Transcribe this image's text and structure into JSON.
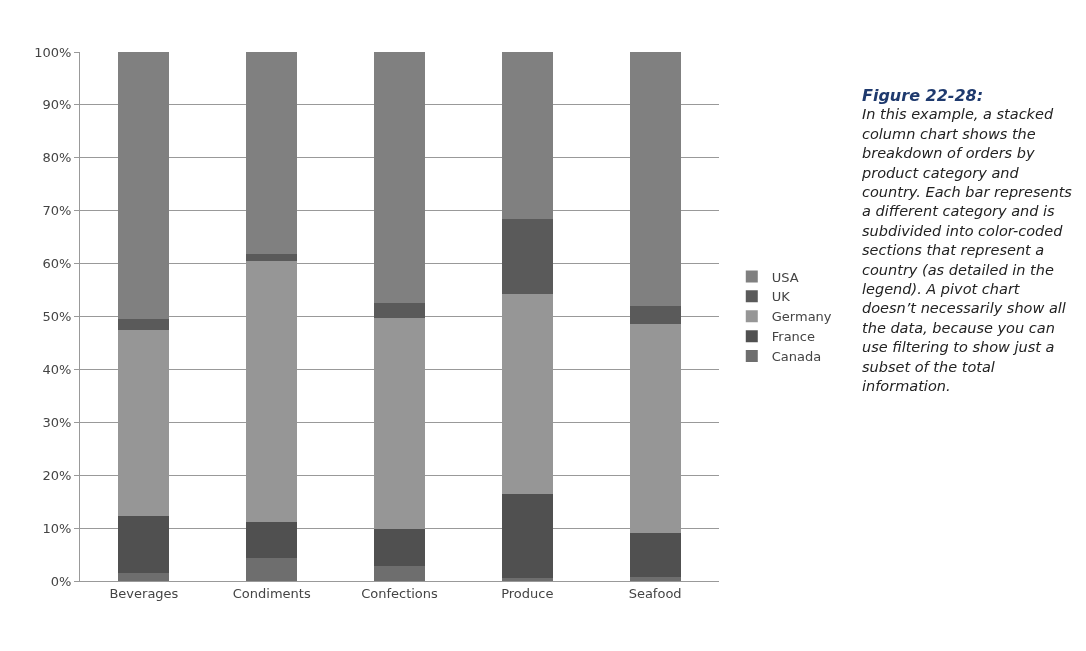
{
  "chart_data": {
    "type": "bar",
    "stacked": true,
    "title": "Figure 22-28:",
    "annotations": [
      "In this example, a stacked column chart shows the breakdown of orders by product category and country. Each bar represents a different category and is subdivided into color-coded sections that represent a country (as detailed in the legend). A pivot chart doesn’t necessarily show all the data, because you can use filtering to show just a subset of the total information."
    ],
    "categories": [
      "Beverages",
      "Condiments",
      "Confections",
      "Produce",
      "Seafood"
    ],
    "series": [
      {
        "name": "Canada",
        "color": "#6e6e6e",
        "values": [
          1.5,
          4.4,
          2.8,
          0.5,
          0.8
        ]
      },
      {
        "name": "France",
        "color": "#505050",
        "values": [
          10.8,
          6.8,
          7.0,
          15.9,
          8.2
        ]
      },
      {
        "name": "Germany",
        "color": "#969696",
        "values": [
          35.2,
          49.3,
          39.9,
          37.9,
          39.5
        ]
      },
      {
        "name": "UK",
        "color": "#5a5a5a",
        "values": [
          2,
          1.3,
          2.8,
          14.2,
          3.5
        ]
      },
      {
        "name": "USA",
        "color": "#808080",
        "values": [
          50.5,
          38.2,
          47.5,
          31.5,
          48
        ]
      }
    ],
    "ylim": [
      0,
      100
    ],
    "yticks": [
      {
        "value": 0,
        "label": "0%"
      },
      {
        "value": 10,
        "label": "10%"
      },
      {
        "value": 20,
        "label": "20%"
      },
      {
        "value": 30,
        "label": "30%"
      },
      {
        "value": 40,
        "label": "40%"
      },
      {
        "value": 50,
        "label": "50%"
      },
      {
        "value": 60,
        "label": "60%"
      },
      {
        "value": 70,
        "label": "70%"
      },
      {
        "value": 80,
        "label": "80%"
      },
      {
        "value": 90,
        "label": "90%"
      },
      {
        "value": 100,
        "label": "100%"
      }
    ],
    "grid": "y",
    "legend": "right"
  }
}
